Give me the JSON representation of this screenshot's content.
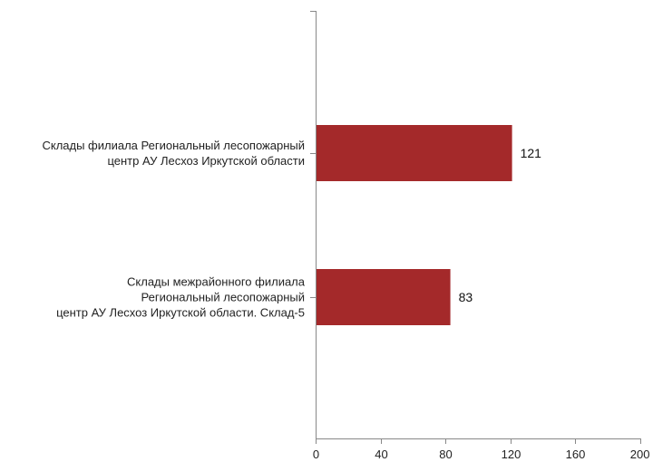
{
  "chart_data": {
    "type": "bar",
    "orientation": "horizontal",
    "categories": [
      [
        "Склады филиала Региональный лесопожарный",
        "центр АУ Лесхоз Иркутской области"
      ],
      [
        "Склады межрайонного филиала",
        "Региональный лесопожарный",
        "центр АУ Лесхоз Иркутской области. Склад-5"
      ]
    ],
    "values": [
      121,
      83
    ],
    "xlim": [
      0,
      200
    ],
    "xticks": [
      0,
      40,
      80,
      120,
      160,
      200
    ],
    "grid": false,
    "bar_color": "#a4292a"
  }
}
